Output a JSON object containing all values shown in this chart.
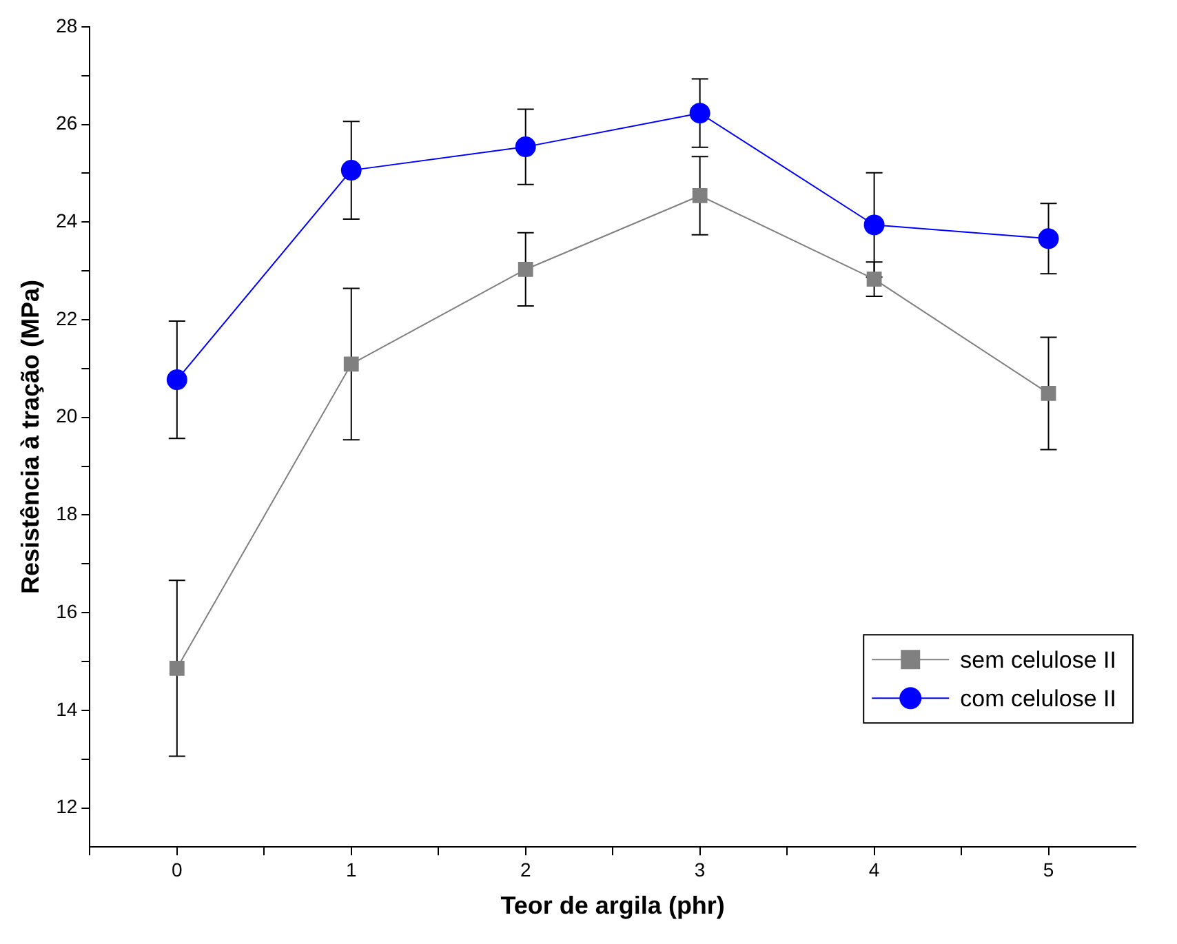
{
  "chart_data": {
    "type": "line",
    "xlabel": "Teor de argila (phr)",
    "ylabel": "Resistência à tração (MPa)",
    "x": [
      0,
      1,
      2,
      3,
      4,
      5
    ],
    "xlim": [
      -0.5,
      5.5
    ],
    "xticks": [
      {
        "value": -0.5,
        "label": null
      },
      0,
      {
        "value": 0.5,
        "label": null
      },
      1,
      {
        "value": 1.5,
        "label": null
      },
      2,
      {
        "value": 2.5,
        "label": null
      },
      3,
      {
        "value": 3.5,
        "label": null
      },
      4,
      {
        "value": 4.5,
        "label": null
      },
      5
    ],
    "ylim": [
      11.2,
      28
    ],
    "yticks": [
      12,
      {
        "value": 13,
        "label": null
      },
      14,
      {
        "value": 15,
        "label": null
      },
      16,
      {
        "value": 17,
        "label": null
      },
      18,
      {
        "value": 19,
        "label": null
      },
      20,
      {
        "value": 21,
        "label": null
      },
      22,
      {
        "value": 23,
        "label": null
      },
      24,
      {
        "value": 25,
        "label": null
      },
      26,
      {
        "value": 27,
        "label": null
      },
      28
    ],
    "grid": false,
    "legend": "bottom right",
    "series": [
      {
        "name": "sem celulose II",
        "color": "#808080",
        "marker": "square",
        "values": [
          14.86,
          21.09,
          23.03,
          24.54,
          22.83,
          20.49
        ],
        "errors": [
          1.8,
          1.55,
          0.75,
          0.8,
          0.35,
          1.15
        ]
      },
      {
        "name": "com celulose II",
        "color": "#0000ff",
        "marker": "circle",
        "values": [
          20.77,
          25.06,
          25.54,
          26.23,
          23.94,
          23.66
        ],
        "errors": [
          1.2,
          1.0,
          0.77,
          0.7,
          1.07,
          0.72
        ]
      }
    ]
  }
}
